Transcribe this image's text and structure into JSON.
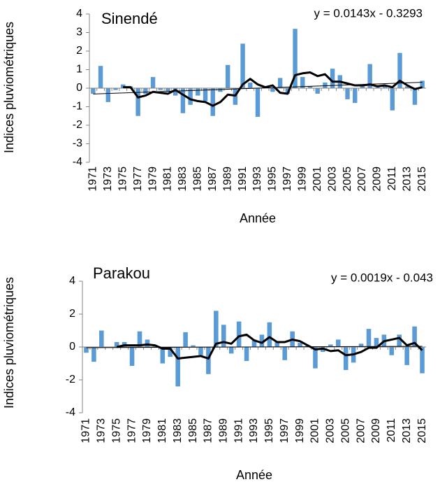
{
  "chart_data": [
    {
      "type": "bar",
      "title": "Sinendé",
      "annotation": "y = 0.0143x - 0.3293",
      "trendline": {
        "slope": 0.0143,
        "intercept": -0.3293
      },
      "x_label": "Année",
      "y_label": "Indices pluviométriques",
      "categories": [
        "1971",
        null,
        "1973",
        null,
        "1975",
        null,
        "1977",
        null,
        "1979",
        null,
        "1981",
        null,
        "1983",
        null,
        "1985",
        null,
        "1987",
        null,
        "1989",
        null,
        "1991",
        null,
        "1993",
        null,
        "1995",
        null,
        "1997",
        null,
        "1999",
        null,
        "2001",
        null,
        "2003",
        null,
        "2005",
        null,
        "2007",
        null,
        "2009",
        null,
        "2011",
        null,
        "2013",
        null,
        "2015"
      ],
      "series": [
        {
          "type": "bar",
          "color": "#5b9bd5",
          "values": [
            -0.3,
            1.2,
            -0.75,
            -0.1,
            0.2,
            0.1,
            -1.5,
            -0.3,
            0.6,
            -0.1,
            -0.2,
            -0.4,
            -1.35,
            -0.9,
            -0.4,
            -0.7,
            -1.5,
            -0.2,
            1.25,
            -0.9,
            2.4,
            0.3,
            -1.55,
            0.1,
            -0.2,
            0.55,
            -0.3,
            3.2,
            0.6,
            0.1,
            -0.3,
            0.3,
            1.05,
            0.7,
            -0.6,
            -0.8,
            0.2,
            1.3,
            0.05,
            0.1,
            -1.2,
            1.9,
            0.1,
            -0.9,
            0.4
          ]
        },
        {
          "type": "line",
          "color": "#000000",
          "values": [
            null,
            null,
            null,
            null,
            0.05,
            0.05,
            -0.5,
            -0.4,
            -0.2,
            -0.25,
            -0.3,
            -0.1,
            -0.35,
            -0.6,
            -0.7,
            -0.75,
            -0.95,
            -0.75,
            -0.35,
            -0.4,
            0.2,
            0.5,
            0.2,
            0.05,
            0.15,
            -0.25,
            -0.3,
            0.7,
            0.8,
            0.85,
            0.65,
            0.75,
            0.35,
            0.35,
            0.25,
            0.15,
            0.15,
            0.2,
            0.1,
            0.15,
            0.05,
            0.4,
            0.15,
            -0.05,
            0.05
          ]
        }
      ],
      "ylim": [
        -4,
        4
      ],
      "yticks": [
        -4,
        -3,
        -2,
        -1,
        0,
        1,
        2,
        3,
        4
      ],
      "grid": false
    },
    {
      "type": "bar",
      "title": "Parakou",
      "annotation": "y = 0.0019x - 0.043",
      "trendline": {
        "slope": 0.0019,
        "intercept": -0.043
      },
      "x_label": "Année",
      "y_label": "Indices pluviométriques",
      "categories": [
        "1971",
        null,
        "1973",
        null,
        "1975",
        null,
        "1977",
        null,
        "1979",
        null,
        "1981",
        null,
        "1983",
        null,
        "1985",
        null,
        "1987",
        null,
        "1989",
        null,
        "1991",
        null,
        "1993",
        null,
        "1995",
        null,
        "1997",
        null,
        "1999",
        null,
        "2001",
        null,
        "2003",
        null,
        "2005",
        null,
        "2007",
        null,
        "2009",
        null,
        "2011",
        null,
        "2013",
        null,
        "2015"
      ],
      "series": [
        {
          "type": "bar",
          "color": "#5b9bd5",
          "values": [
            -0.35,
            -0.9,
            1.0,
            0,
            0.3,
            0.3,
            -1.15,
            0.95,
            0.45,
            0.1,
            -1.0,
            -0.6,
            -2.4,
            0.9,
            0.1,
            -0.5,
            -1.65,
            2.2,
            1.35,
            -0.4,
            1.55,
            -0.85,
            0.45,
            0.75,
            1.5,
            0.3,
            -0.8,
            0.95,
            0.25,
            0.1,
            -1.3,
            -0.3,
            0.15,
            0.45,
            -1.4,
            -0.95,
            0.2,
            1.1,
            0.55,
            0.75,
            -0.5,
            0.75,
            -1.1,
            1.25,
            -1.6
          ]
        },
        {
          "type": "line",
          "color": "#000000",
          "values": [
            null,
            null,
            null,
            null,
            0.0,
            0.1,
            0.1,
            0.1,
            0.15,
            0.1,
            -0.1,
            -0.1,
            -0.7,
            -0.65,
            -0.6,
            -0.55,
            -0.7,
            0.2,
            0.3,
            0.2,
            0.65,
            0.75,
            0.4,
            0.25,
            0.6,
            0.3,
            0.3,
            0.45,
            0.35,
            0.1,
            -0.15,
            -0.1,
            -0.25,
            -0.2,
            -0.5,
            -0.45,
            -0.3,
            -0.05,
            -0.05,
            0.35,
            0.45,
            0.55,
            0.1,
            0.25,
            -0.2
          ]
        }
      ],
      "ylim": [
        -4,
        4
      ],
      "yticks": [
        -4,
        -2,
        0,
        2,
        4
      ],
      "grid": false
    }
  ]
}
